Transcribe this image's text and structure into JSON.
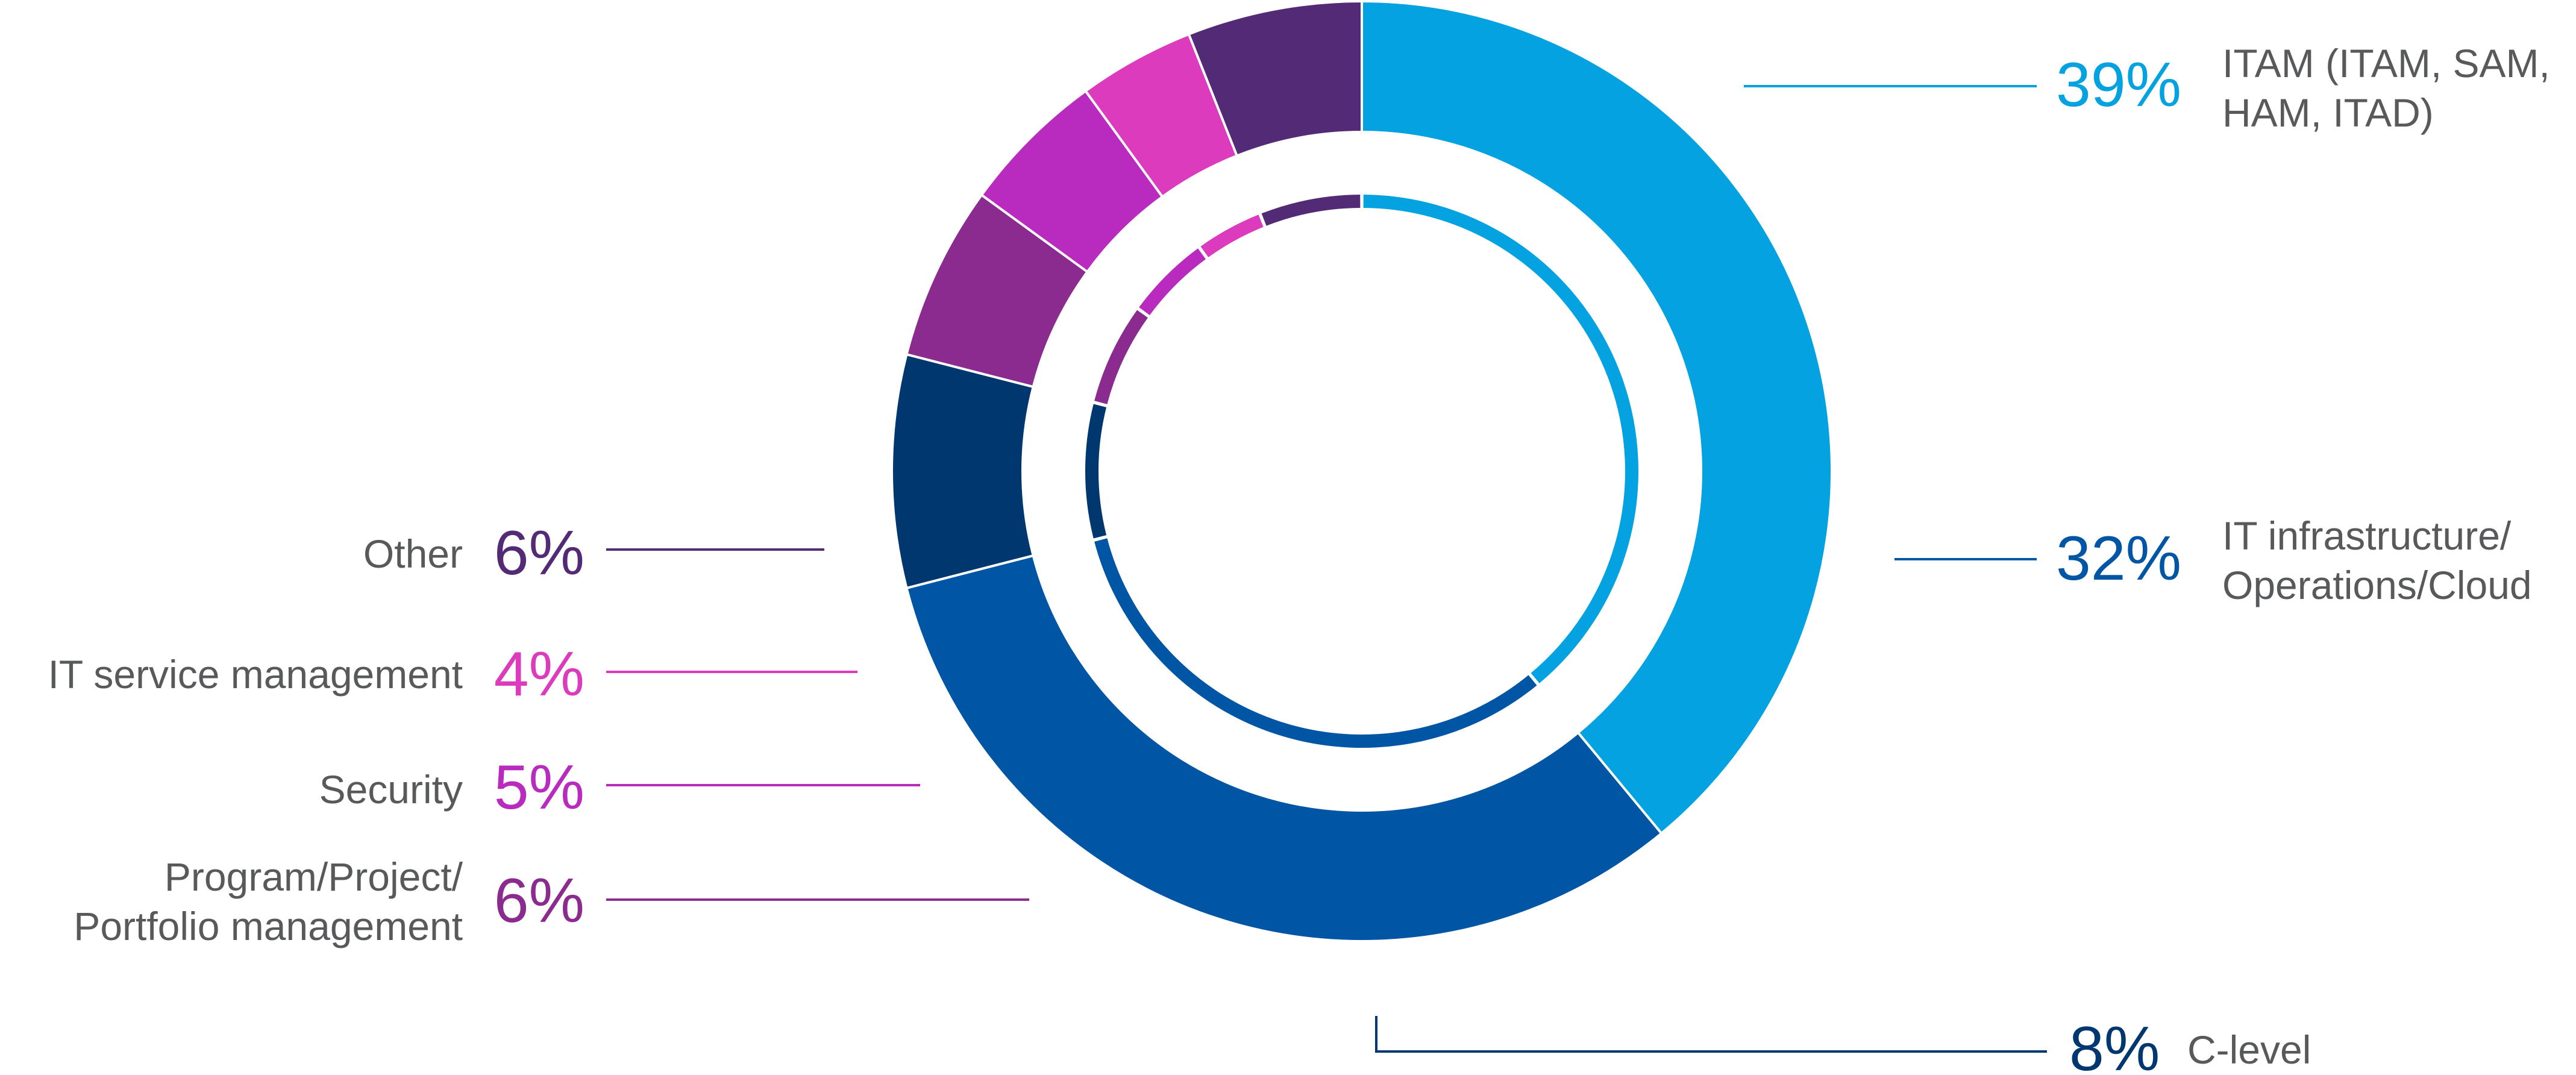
{
  "chart_data": {
    "type": "pie",
    "style": "donut",
    "title": "",
    "slices": [
      {
        "label": "ITAM (ITAM, SAM, HAM, ITAD)",
        "label_lines": [
          "ITAM (ITAM, SAM,",
          "HAM, ITAD)"
        ],
        "percent_label": "39%",
        "value": 39,
        "color": "#04a2e0"
      },
      {
        "label": "IT infrastructure/ Operations/Cloud",
        "label_lines": [
          "IT infrastructure/",
          "Operations/Cloud"
        ],
        "percent_label": "32%",
        "value": 32,
        "color": "#0055a4"
      },
      {
        "label": "C-level",
        "label_lines": [
          "C-level"
        ],
        "percent_label": "8%",
        "value": 8,
        "color": "#00376f"
      },
      {
        "label": "Program/Project/ Portfolio management",
        "label_lines": [
          "Program/Project/",
          "Portfolio management"
        ],
        "percent_label": "6%",
        "value": 6,
        "color": "#8b2a8f"
      },
      {
        "label": "Security",
        "label_lines": [
          "Security"
        ],
        "percent_label": "5%",
        "value": 5,
        "color": "#b92abf"
      },
      {
        "label": "IT service management",
        "label_lines": [
          "IT service management"
        ],
        "percent_label": "4%",
        "value": 4,
        "color": "#db3bbc"
      },
      {
        "label": "Other",
        "label_lines": [
          "Other"
        ],
        "percent_label": "6%",
        "value": 6,
        "color": "#532a76"
      }
    ],
    "start_angle_deg": 270,
    "direction": "clockwise",
    "inner_ring": true,
    "legend": "none"
  }
}
